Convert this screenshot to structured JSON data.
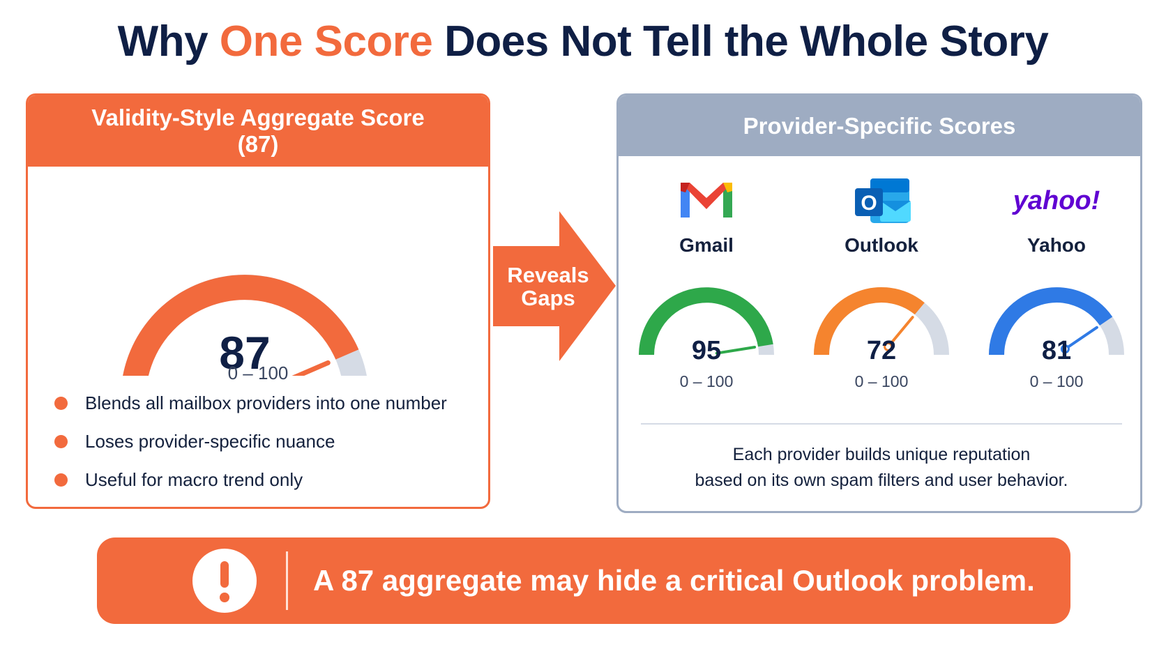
{
  "title": {
    "before": "Why ",
    "accent": "One Score",
    "after": " Does Not Tell the Whole Story"
  },
  "left_panel": {
    "header_line1": "Validity-Style Aggregate Score",
    "header_line2": "(87)",
    "score": 87,
    "score_label": "87",
    "range_label": "0 – 100",
    "bullets": [
      "Blends all mailbox providers into one number",
      "Loses provider-specific nuance",
      "Useful for macro trend only"
    ]
  },
  "arrow": {
    "line1": "Reveals",
    "line2": "Gaps"
  },
  "right_panel": {
    "header": "Provider-Specific Scores",
    "providers": [
      {
        "name": "Gmail",
        "score": 95,
        "score_label": "95",
        "range_label": "0 – 100",
        "logo": "gmail-logo-icon"
      },
      {
        "name": "Outlook",
        "score": 72,
        "score_label": "72",
        "range_label": "0 – 100",
        "logo": "outlook-logo-icon"
      },
      {
        "name": "Yahoo",
        "score": 81,
        "score_label": "81",
        "range_label": "0 – 100",
        "logo": "yahoo-logo-icon"
      }
    ],
    "note_line1": "Each provider builds unique reputation",
    "note_line2": "based on its own spam filters and user behavior."
  },
  "banner": {
    "message": "A 87 aggregate may hide a critical Outlook problem.",
    "icon": "exclamation-icon"
  },
  "colors": {
    "accent": "#f26a3d",
    "navy": "#0f1f45",
    "slate": "#9eacc2",
    "track": "#d5dbe5",
    "gmail": "#2ea84a",
    "outlook": "#f5842e",
    "yahoo": "#2f7ae5"
  }
}
